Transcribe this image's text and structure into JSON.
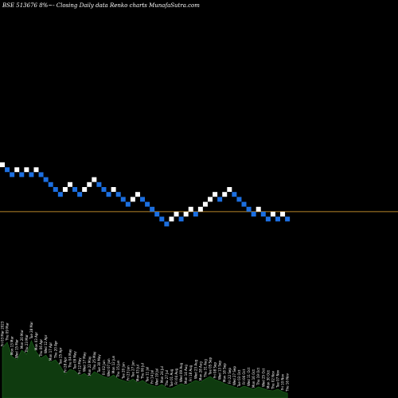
{
  "chart_data": {
    "type": "renko",
    "title": "BSE 513676  8%~- Closing Daily data  Renko  charts MunafaSutra.com",
    "colors": {
      "background": "#000000",
      "up_brick": "#ffffff",
      "down_brick": "#1c6fe0",
      "reference_line": "#b8862b",
      "volume_area": "#0f3b0f",
      "volume_outline": "#1f6b1f"
    },
    "reference_level": 39.5,
    "reference_line_color_name": "brown",
    "bricks": [
      {
        "dir": "up",
        "level": 49
      },
      {
        "dir": "down",
        "level": 48
      },
      {
        "dir": "down",
        "level": 47
      },
      {
        "dir": "up",
        "level": 48
      },
      {
        "dir": "down",
        "level": 47
      },
      {
        "dir": "up",
        "level": 48
      },
      {
        "dir": "down",
        "level": 47
      },
      {
        "dir": "up",
        "level": 48
      },
      {
        "dir": "down",
        "level": 47
      },
      {
        "dir": "down",
        "level": 46
      },
      {
        "dir": "down",
        "level": 45
      },
      {
        "dir": "down",
        "level": 44
      },
      {
        "dir": "down",
        "level": 43
      },
      {
        "dir": "up",
        "level": 44
      },
      {
        "dir": "up",
        "level": 45
      },
      {
        "dir": "down",
        "level": 44
      },
      {
        "dir": "down",
        "level": 43
      },
      {
        "dir": "up",
        "level": 44
      },
      {
        "dir": "up",
        "level": 45
      },
      {
        "dir": "up",
        "level": 46
      },
      {
        "dir": "down",
        "level": 45
      },
      {
        "dir": "down",
        "level": 44
      },
      {
        "dir": "down",
        "level": 43
      },
      {
        "dir": "up",
        "level": 44
      },
      {
        "dir": "down",
        "level": 43
      },
      {
        "dir": "down",
        "level": 42
      },
      {
        "dir": "down",
        "level": 41
      },
      {
        "dir": "up",
        "level": 42
      },
      {
        "dir": "up",
        "level": 43
      },
      {
        "dir": "down",
        "level": 42
      },
      {
        "dir": "down",
        "level": 41
      },
      {
        "dir": "down",
        "level": 40
      },
      {
        "dir": "down",
        "level": 39
      },
      {
        "dir": "down",
        "level": 38
      },
      {
        "dir": "down",
        "level": 37
      },
      {
        "dir": "up",
        "level": 38
      },
      {
        "dir": "up",
        "level": 39
      },
      {
        "dir": "down",
        "level": 38
      },
      {
        "dir": "up",
        "level": 39
      },
      {
        "dir": "up",
        "level": 40
      },
      {
        "dir": "down",
        "level": 39
      },
      {
        "dir": "up",
        "level": 40
      },
      {
        "dir": "up",
        "level": 41
      },
      {
        "dir": "up",
        "level": 42
      },
      {
        "dir": "up",
        "level": 43
      },
      {
        "dir": "down",
        "level": 42
      },
      {
        "dir": "up",
        "level": 43
      },
      {
        "dir": "up",
        "level": 44
      },
      {
        "dir": "down",
        "level": 43
      },
      {
        "dir": "down",
        "level": 42
      },
      {
        "dir": "down",
        "level": 41
      },
      {
        "dir": "down",
        "level": 40
      },
      {
        "dir": "down",
        "level": 39
      },
      {
        "dir": "up",
        "level": 40
      },
      {
        "dir": "down",
        "level": 39
      },
      {
        "dir": "down",
        "level": 38
      },
      {
        "dir": "up",
        "level": 39
      },
      {
        "dir": "down",
        "level": 38
      },
      {
        "dir": "up",
        "level": 39
      },
      {
        "dir": "down",
        "level": 38
      }
    ],
    "volume": [
      63,
      70,
      52,
      48,
      60,
      55,
      72,
      58,
      50,
      54,
      45,
      48,
      40,
      30,
      36,
      34,
      28,
      31,
      26,
      33,
      30,
      27,
      25,
      29,
      24,
      22,
      20,
      24,
      19,
      22,
      18,
      16,
      14,
      17,
      13,
      12,
      15,
      18,
      16,
      19,
      22,
      20,
      24,
      27,
      23,
      21,
      18,
      16,
      14,
      12,
      15,
      13,
      11,
      14,
      12,
      10,
      9,
      11,
      8,
      6
    ],
    "date_labels": [
      "Fri 03 Mar 2023",
      "Thu 09 Mar",
      "Mon 13 Mar",
      "Wed 15 Mar",
      "Mon 20 Mar",
      "Thu 23 Mar",
      "Tue 28 Mar",
      "Mon 03 Apr",
      "Thu 06 Apr",
      "Wed 12 Apr",
      "Mon 17 Apr",
      "Thu 20 Apr",
      "Tue 25 Apr",
      "Fri 28 Apr",
      "Thu 04 May",
      "Tue 09 May",
      "Fri 12 May",
      "Wed 17 May",
      "Mon 22 May",
      "Thu 25 May",
      "Tue 30 May",
      "Fri 02 Jun",
      "Wed 07 Jun",
      "Mon 12 Jun",
      "Thu 15 Jun",
      "Tue 20 Jun",
      "Fri 23 Jun",
      "Tue 27 Jun",
      "Mon 03 Jul",
      "Thu 06 Jul",
      "Tue 11 Jul",
      "Fri 14 Jul",
      "Wed 19 Jul",
      "Mon 24 Jul",
      "Thu 27 Jul",
      "Tue 01 Aug",
      "Fri 04 Aug",
      "Wed 09 Aug",
      "Mon 14 Aug",
      "Fri 18 Aug",
      "Wed 23 Aug",
      "Mon 28 Aug",
      "Thu 31 Aug",
      "Tue 05 Sep",
      "Fri 08 Sep",
      "Wed 13 Sep",
      "Mon 18 Sep",
      "Fri 22 Sep",
      "Wed 27 Sep",
      "Tue 03 Oct",
      "Fri 06 Oct",
      "Wed 11 Oct",
      "Mon 16 Oct",
      "Thu 19 Oct",
      "Wed 25 Oct",
      "Mon 30 Oct",
      "Thu 02 Nov",
      "Tue 07 Nov",
      "Fri 10 Nov",
      "Thu 16 Nov"
    ]
  }
}
